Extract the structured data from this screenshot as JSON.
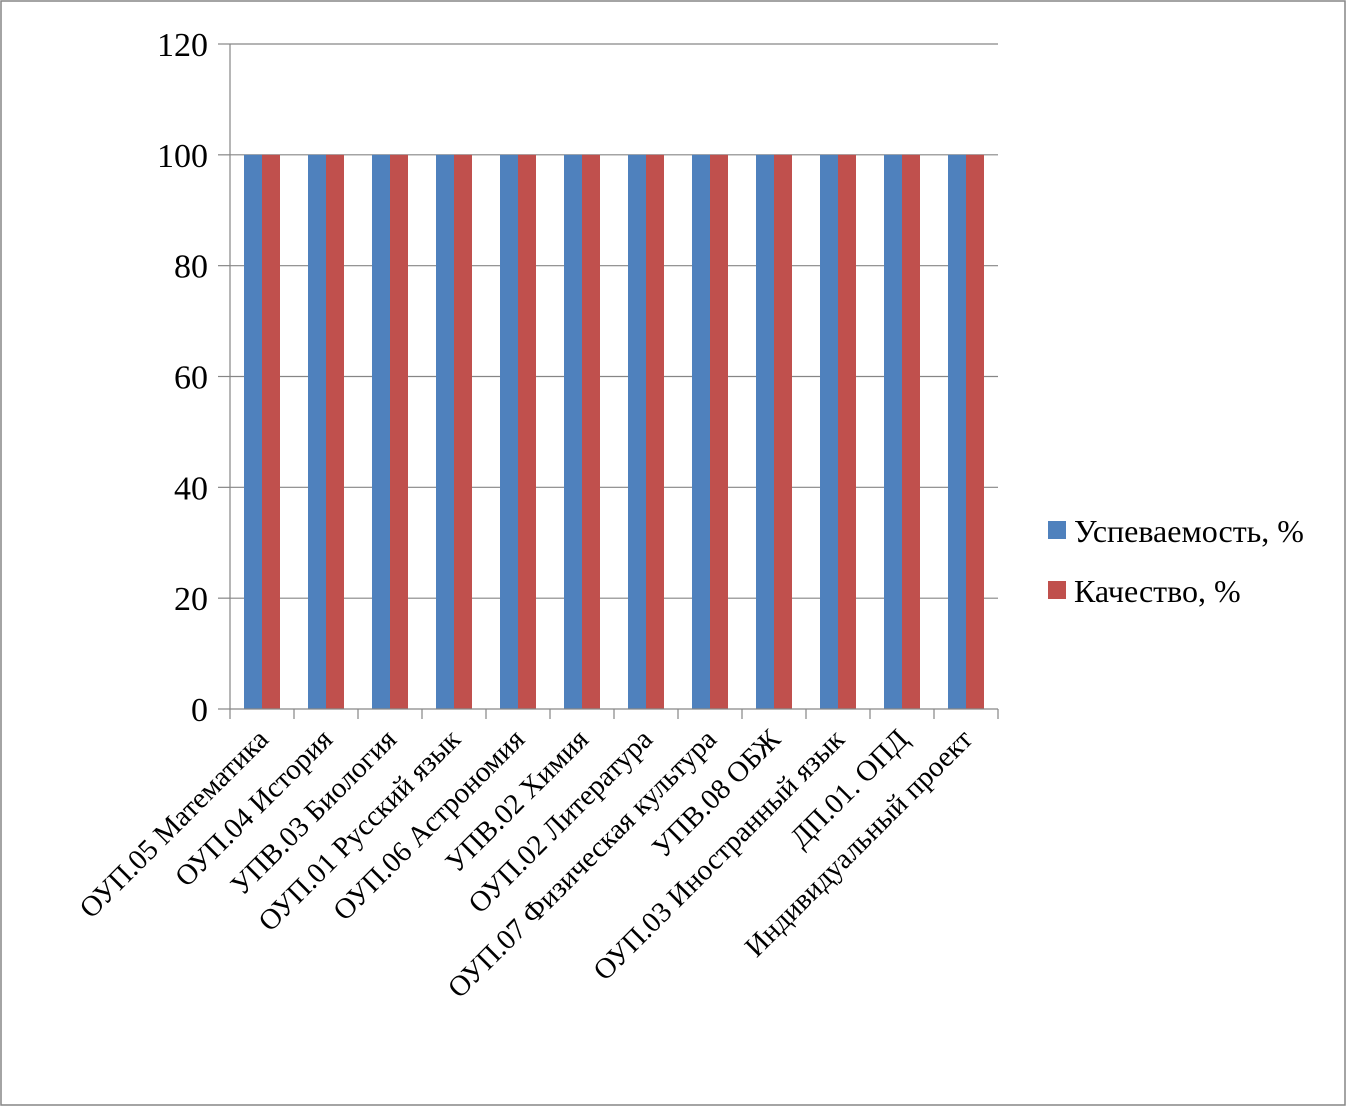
{
  "chart_data": {
    "type": "bar",
    "title": "",
    "xlabel": "",
    "ylabel": "",
    "ylim": [
      0,
      120
    ],
    "yticks": [
      0,
      20,
      40,
      60,
      80,
      100,
      120
    ],
    "grid": true,
    "legend_position": "right",
    "categories": [
      "ОУП.05 Математика",
      "ОУП.04 История",
      "УПВ.03 Биология",
      "ОУП.01 Русский язык",
      "ОУП.06 Астрономия",
      "УПВ.02 Химия",
      "ОУП.02 Литература",
      "ОУП.07 Физическая культура",
      "УПВ.08 ОБЖ",
      "ОУП.03 Иностранный язык",
      "ДП.01. ОПД",
      "Индивидуальный проект"
    ],
    "series": [
      {
        "name": "Успеваемость, %",
        "color": "#4F81BD",
        "values": [
          100,
          100,
          100,
          100,
          100,
          100,
          100,
          100,
          100,
          100,
          100,
          100
        ]
      },
      {
        "name": "Качество, %",
        "color": "#C0504D",
        "values": [
          100,
          100,
          100,
          100,
          100,
          100,
          100,
          100,
          100,
          100,
          100,
          100
        ]
      }
    ]
  },
  "colors": {
    "axis": "#868686",
    "gridline": "#868686",
    "frame": "#868686"
  }
}
